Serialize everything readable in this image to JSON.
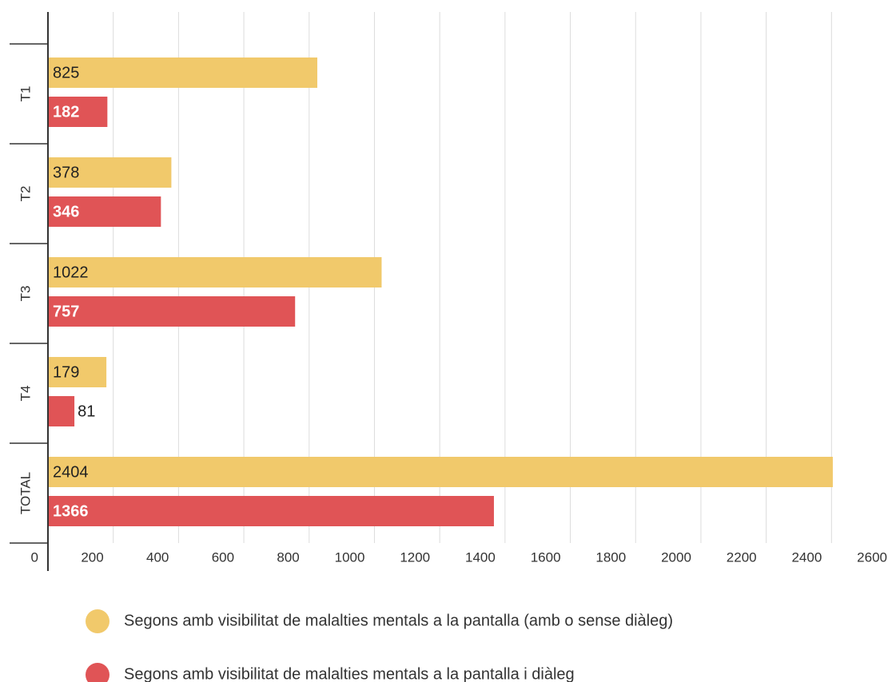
{
  "chart_data": {
    "type": "hbar",
    "categories": [
      "T1",
      "T2",
      "T3",
      "T4",
      "TOTAL"
    ],
    "series": [
      {
        "name": "Segons amb visibilitat de malalties mentals a la pantalla (amb o sense diàleg)",
        "color": "#f1c96b",
        "values": [
          825,
          378,
          1022,
          179,
          2404
        ]
      },
      {
        "name": "Segons amb visibilitat de malalties mentals a la pantalla i diàleg",
        "color": "#e05456",
        "values": [
          182,
          346,
          757,
          81,
          1366
        ]
      }
    ],
    "xlim": [
      0,
      2600
    ],
    "xticks": [
      0,
      200,
      400,
      600,
      800,
      1000,
      1200,
      1400,
      1600,
      1800,
      2000,
      2200,
      2400,
      2600
    ],
    "grid": true,
    "legend": "bottom"
  }
}
